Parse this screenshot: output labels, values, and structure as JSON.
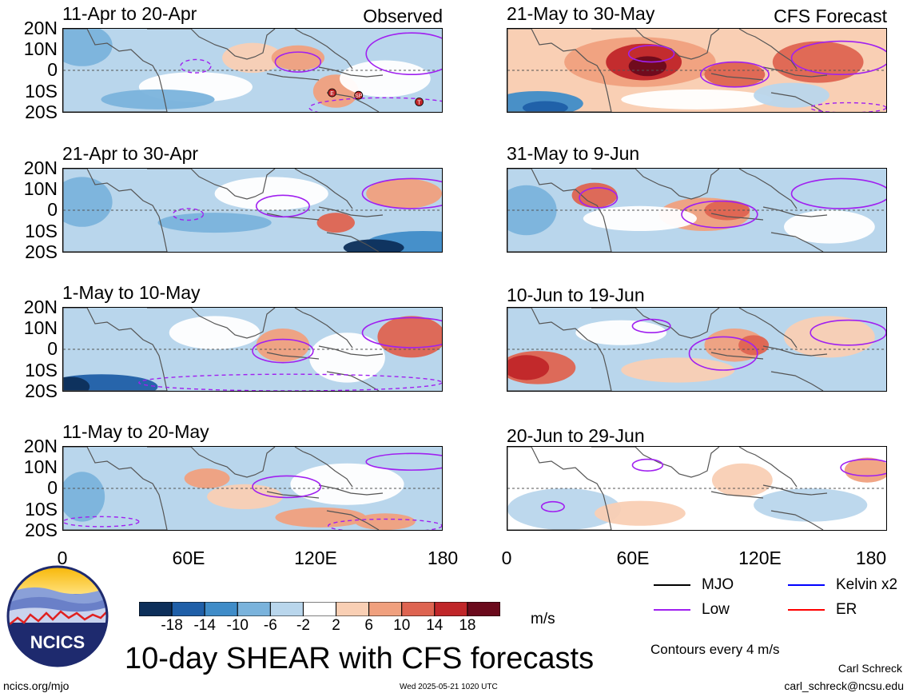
{
  "panels": [
    {
      "title": "11-Apr to 20-Apr",
      "tag": "Observed"
    },
    {
      "title": "21-Apr to 30-Apr",
      "tag": ""
    },
    {
      "title": "1-May to 10-May",
      "tag": ""
    },
    {
      "title": "11-May to 20-May",
      "tag": ""
    },
    {
      "title": "21-May to 30-May",
      "tag": "CFS Forecast"
    },
    {
      "title": "31-May to 9-Jun",
      "tag": ""
    },
    {
      "title": "10-Jun to 19-Jun",
      "tag": ""
    },
    {
      "title": "20-Jun to 29-Jun",
      "tag": ""
    }
  ],
  "lat_labels": [
    "20N",
    "10N",
    "0",
    "10S",
    "20S"
  ],
  "lon_labels": [
    "0",
    "60E",
    "120E",
    "180"
  ],
  "storm_markers": [
    "E",
    "SP",
    "T"
  ],
  "colorbar": {
    "labels": [
      "-18",
      "-14",
      "-10",
      "-6",
      "-2",
      "2",
      "6",
      "10",
      "14",
      "18"
    ],
    "colors": [
      "#0d2f5a",
      "#1f5fa8",
      "#3f8cc8",
      "#7ab3dc",
      "#b9d6ec",
      "#ffffff",
      "#f9cfb4",
      "#f0a07e",
      "#de6451",
      "#c02629",
      "#6b0a1c"
    ],
    "units": "m/s"
  },
  "legend": [
    {
      "label": "MJO",
      "color": "#000000"
    },
    {
      "label": "Low",
      "color": "#a020f0"
    },
    {
      "label": "Kelvin x2",
      "color": "#0000ff"
    },
    {
      "label": "ER",
      "color": "#ff0000"
    }
  ],
  "contour_note": "Contours every 4 m/s",
  "main_title": "10-day SHEAR with CFS forecasts",
  "org": "NCICS",
  "url": "ncics.org/mjo",
  "timestamp": "Wed 2025-05-21 1020 UTC",
  "author": "Carl Schreck",
  "email": "carl_schreck@ncsu.edu"
}
